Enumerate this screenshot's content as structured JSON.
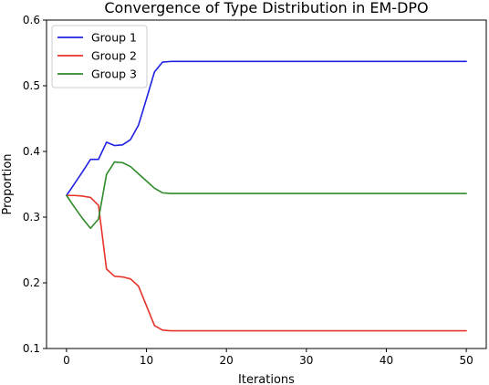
{
  "chart_data": {
    "type": "line",
    "title": "Convergence of Type Distribution in EM-DPO",
    "xlabel": "Iterations",
    "ylabel": "Proportion",
    "xlim": [
      -2.5,
      52.5
    ],
    "ylim": [
      0.1,
      0.6
    ],
    "xticks": [
      0,
      10,
      20,
      30,
      40,
      50
    ],
    "yticks": [
      0.1,
      0.2,
      0.3,
      0.4,
      0.5,
      0.6
    ],
    "xtick_labels": [
      "0",
      "10",
      "20",
      "30",
      "40",
      "50"
    ],
    "ytick_labels": [
      "0.1",
      "0.2",
      "0.3",
      "0.4",
      "0.5",
      "0.6"
    ],
    "grid": false,
    "legend_position": "top-left",
    "x": [
      0,
      1,
      2,
      3,
      4,
      5,
      6,
      7,
      8,
      9,
      10,
      11,
      12,
      13,
      14,
      15,
      16,
      17,
      18,
      19,
      20,
      21,
      22,
      23,
      24,
      25,
      26,
      27,
      28,
      29,
      30,
      31,
      32,
      33,
      34,
      35,
      36,
      37,
      38,
      39,
      40,
      41,
      42,
      43,
      44,
      45,
      46,
      47,
      48,
      49,
      50
    ],
    "series": [
      {
        "name": "Group 1",
        "color": "#1f22e0",
        "values": [
          0.333,
          0.351,
          0.369,
          0.388,
          0.388,
          0.414,
          0.409,
          0.41,
          0.418,
          0.44,
          0.48,
          0.521,
          0.536,
          0.537,
          0.537,
          0.537,
          0.537,
          0.537,
          0.537,
          0.537,
          0.537,
          0.537,
          0.537,
          0.537,
          0.537,
          0.537,
          0.537,
          0.537,
          0.537,
          0.537,
          0.537,
          0.537,
          0.537,
          0.537,
          0.537,
          0.537,
          0.537,
          0.537,
          0.537,
          0.537,
          0.537,
          0.537,
          0.537,
          0.537,
          0.537,
          0.537,
          0.537,
          0.537,
          0.537,
          0.537,
          0.537
        ]
      },
      {
        "name": "Group 2",
        "color": "#e8332a",
        "values": [
          0.333,
          0.333,
          0.332,
          0.33,
          0.318,
          0.221,
          0.21,
          0.209,
          0.206,
          0.195,
          0.165,
          0.135,
          0.128,
          0.127,
          0.127,
          0.127,
          0.127,
          0.127,
          0.127,
          0.127,
          0.127,
          0.127,
          0.127,
          0.127,
          0.127,
          0.127,
          0.127,
          0.127,
          0.127,
          0.127,
          0.127,
          0.127,
          0.127,
          0.127,
          0.127,
          0.127,
          0.127,
          0.127,
          0.127,
          0.127,
          0.127,
          0.127,
          0.127,
          0.127,
          0.127,
          0.127,
          0.127,
          0.127,
          0.127,
          0.127,
          0.127
        ]
      },
      {
        "name": "Group 3",
        "color": "#2f8a2a",
        "values": [
          0.333,
          0.315,
          0.298,
          0.283,
          0.297,
          0.365,
          0.384,
          0.383,
          0.377,
          0.366,
          0.355,
          0.344,
          0.337,
          0.336,
          0.336,
          0.336,
          0.336,
          0.336,
          0.336,
          0.336,
          0.336,
          0.336,
          0.336,
          0.336,
          0.336,
          0.336,
          0.336,
          0.336,
          0.336,
          0.336,
          0.336,
          0.336,
          0.336,
          0.336,
          0.336,
          0.336,
          0.336,
          0.336,
          0.336,
          0.336,
          0.336,
          0.336,
          0.336,
          0.336,
          0.336,
          0.336,
          0.336,
          0.336,
          0.336,
          0.336,
          0.336
        ]
      }
    ]
  }
}
